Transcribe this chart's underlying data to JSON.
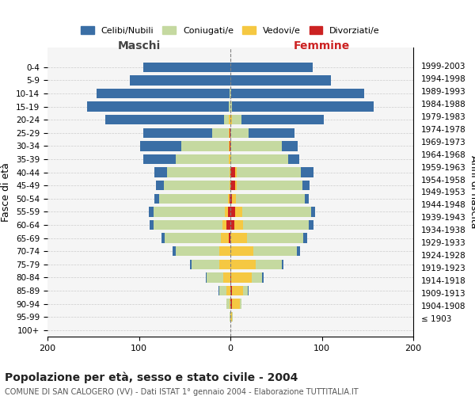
{
  "age_groups": [
    "100+",
    "95-99",
    "90-94",
    "85-89",
    "80-84",
    "75-79",
    "70-74",
    "65-69",
    "60-64",
    "55-59",
    "50-54",
    "45-49",
    "40-44",
    "35-39",
    "30-34",
    "25-29",
    "20-24",
    "15-19",
    "10-14",
    "5-9",
    "0-4"
  ],
  "birth_years": [
    "≤ 1903",
    "1904-1908",
    "1909-1913",
    "1914-1918",
    "1919-1923",
    "1924-1928",
    "1929-1933",
    "1934-1938",
    "1939-1943",
    "1944-1948",
    "1949-1953",
    "1954-1958",
    "1959-1963",
    "1964-1968",
    "1969-1973",
    "1974-1978",
    "1979-1983",
    "1984-1988",
    "1989-1993",
    "1994-1998",
    "1999-2003"
  ],
  "male": {
    "celibi": [
      0,
      0,
      0,
      1,
      1,
      2,
      3,
      3,
      4,
      5,
      5,
      8,
      14,
      35,
      45,
      75,
      130,
      155,
      145,
      110,
      95
    ],
    "coniugati": [
      0,
      1,
      3,
      8,
      18,
      30,
      48,
      62,
      75,
      78,
      75,
      72,
      68,
      58,
      52,
      18,
      5,
      2,
      1,
      0,
      0
    ],
    "vedovi": [
      0,
      0,
      1,
      4,
      8,
      12,
      12,
      8,
      5,
      3,
      2,
      1,
      1,
      2,
      1,
      1,
      2,
      0,
      0,
      0,
      0
    ],
    "divorziati": [
      0,
      0,
      0,
      0,
      0,
      0,
      0,
      2,
      4,
      3,
      1,
      0,
      0,
      0,
      1,
      1,
      0,
      0,
      0,
      0,
      0
    ]
  },
  "female": {
    "nubili": [
      0,
      0,
      0,
      1,
      1,
      2,
      3,
      4,
      5,
      5,
      5,
      8,
      14,
      12,
      18,
      50,
      90,
      155,
      145,
      110,
      90
    ],
    "coniugati": [
      0,
      1,
      2,
      5,
      12,
      28,
      48,
      62,
      72,
      75,
      75,
      72,
      70,
      62,
      55,
      20,
      10,
      2,
      1,
      0,
      0
    ],
    "vedove": [
      0,
      2,
      8,
      12,
      22,
      28,
      25,
      18,
      10,
      8,
      4,
      2,
      2,
      1,
      1,
      0,
      2,
      0,
      0,
      0,
      0
    ],
    "divorziate": [
      0,
      0,
      2,
      2,
      1,
      0,
      0,
      0,
      4,
      5,
      2,
      5,
      5,
      0,
      0,
      0,
      0,
      0,
      0,
      0,
      0
    ]
  },
  "colors": {
    "celibi": "#3a6ea5",
    "coniugati": "#c5d9a0",
    "vedovi": "#f5c842",
    "divorziati": "#cc2222"
  },
  "title": "Popolazione per età, sesso e stato civile - 2004",
  "subtitle": "COMUNE DI SAN CALOGERO (VV) - Dati ISTAT 1° gennaio 2004 - Elaborazione TUTTITALIA.IT",
  "xlabel_left": "Maschi",
  "xlabel_right": "Femmine",
  "ylabel_left": "Fasce di età",
  "ylabel_right": "Anni di nascita",
  "xlim": 200,
  "legend_labels": [
    "Celibi/Nubili",
    "Coniugati/e",
    "Vedovi/e",
    "Divorziati/e"
  ],
  "bg_color": "#f5f5f5",
  "grid_color": "#cccccc"
}
